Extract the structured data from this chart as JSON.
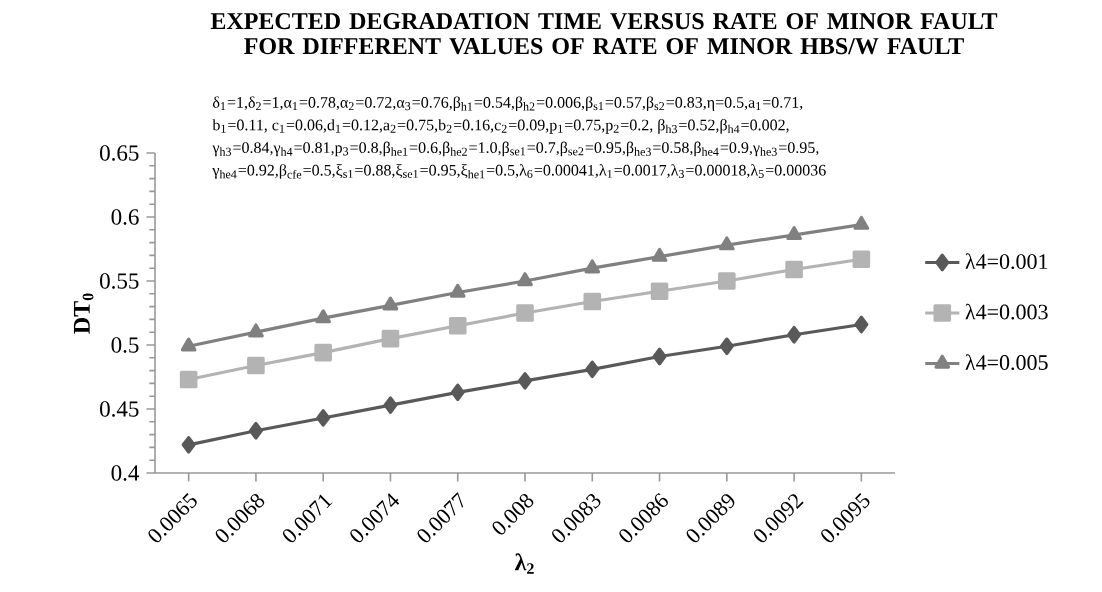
{
  "chart_data": {
    "type": "line",
    "title": "EXPECTED DEGRADATION TIME VERSUS RATE OF MINOR FAULT FOR DIFFERENT VALUES OF RATE OF MINOR HBS/W FAULT",
    "annotations": [
      "δ$_{1}$=1,δ$_{2}$=1,α$_{1}$=0.78,α$_{2}$=0.72,α$_{3}$=0.76,β$_{h1}$=0.54,β$_{h2}$=0.006,β$_{s1}$=0.57,β$_{s2}$=0.83,η=0.5,a$_{1}$=0.71,",
      "b$_{1}$=0.11, c$_{1}$=0.06,d$_{1}$=0.12,a$_{2}$=0.75,b$_{2}$=0.16,c$_{2}$=0.09,p$_{1}$=0.75,p$_{2}$=0.2, β$_{h3}$=0.52,β$_{h4}$=0.002,",
      "γ$_{h3}$=0.84,γ$_{h4}$=0.81,p$_{3}$=0.8,β$_{he1}$=0.6,β$_{he2}$=1.0,β$_{se1}$=0.7,β$_{se2}$=0.95,β$_{he3}$=0.58,β$_{he4}$=0.9,γ$_{he3}$=0.95,",
      "γ$_{he4}$=0.92,β$_{cfe}$=0.5,ξ$_{s1}$=0.88,ξ$_{se1}$=0.95,ξ$_{he1}$=0.5,λ$_{6}$=0.00041,λ$_{1}$=0.0017,λ$_{3}$=0.00018,λ$_{5}$=0.00036"
    ],
    "xlabel": "λ$_{2}$",
    "ylabel": "DT$_{0}$",
    "categories": [
      "0.0065",
      "0.0068",
      "0.0071",
      "0.0074",
      "0.0077",
      "0.008",
      "0.0083",
      "0.0086",
      "0.0089",
      "0.0092",
      "0.0095"
    ],
    "series": [
      {
        "name": "λ4=0.001",
        "color": "#595959",
        "marker": "diamond",
        "values": [
          0.422,
          0.433,
          0.443,
          0.453,
          0.463,
          0.472,
          0.481,
          0.491,
          0.499,
          0.508,
          0.516
        ]
      },
      {
        "name": "λ4=0.003",
        "color": "#b3b3b3",
        "marker": "square",
        "values": [
          0.473,
          0.484,
          0.494,
          0.505,
          0.515,
          0.525,
          0.534,
          0.542,
          0.55,
          0.559,
          0.567
        ]
      },
      {
        "name": "λ4=0.005",
        "color": "#808080",
        "marker": "triangle",
        "values": [
          0.499,
          0.51,
          0.521,
          0.531,
          0.541,
          0.55,
          0.56,
          0.569,
          0.578,
          0.586,
          0.594
        ]
      }
    ],
    "ylim": [
      0.4,
      0.65
    ],
    "yticks": [
      0.4,
      0.45,
      0.5,
      0.55,
      0.6,
      0.65
    ],
    "grid": false,
    "legend": "right",
    "line_style": "solid"
  }
}
